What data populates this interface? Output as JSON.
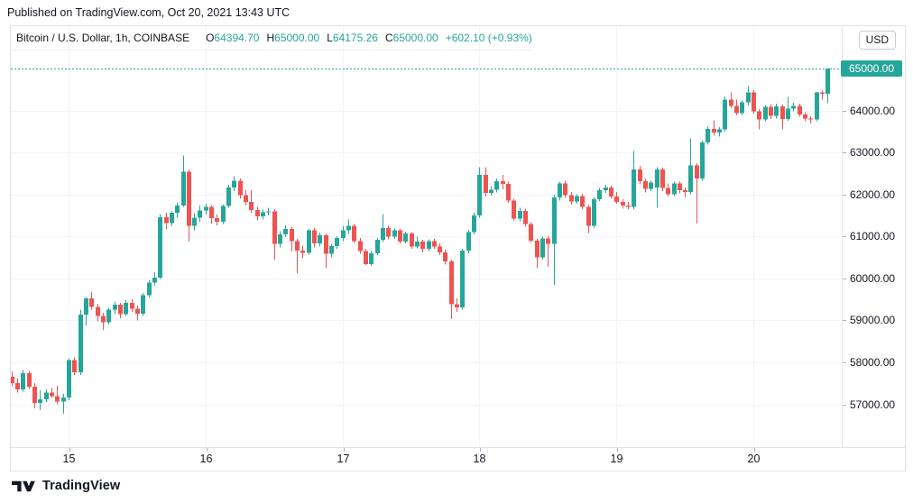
{
  "published_line": "Published on TradingView.com, Oct 20, 2021 13:43 UTC",
  "legend": {
    "symbol_title": "Bitcoin / U.S. Dollar, 1h, COINBASE",
    "open_label": "O",
    "open_value": "64394.70",
    "high_label": "H",
    "high_value": "65000.00",
    "low_label": "L",
    "low_value": "64175.26",
    "close_label": "C",
    "close_value": "65000.00",
    "change_value": "+602.10 (+0.93%)"
  },
  "price_axis": {
    "currency_button_label": "USD",
    "tick_labels": [
      "64000.00",
      "63000.00",
      "62000.00",
      "61000.00",
      "60000.00",
      "59000.00",
      "58000.00",
      "57000.00"
    ],
    "last_price_label": "65000.00"
  },
  "time_axis": {
    "tick_labels": [
      "15",
      "16",
      "17",
      "18",
      "19",
      "20"
    ]
  },
  "footer_logo": {
    "text": "TradingView"
  },
  "colors": {
    "up": "#26a69a",
    "down": "#ef5350",
    "last_price_line": "#26a69a",
    "grid": "#f0f3fa",
    "frame_border": "#e0e3eb",
    "text": "#131722",
    "value_text": "#26a69a"
  },
  "chart_data": {
    "type": "candlestick",
    "title": "Bitcoin / U.S. Dollar, 1h, COINBASE",
    "symbol": "Bitcoin / U.S. Dollar",
    "exchange": "COINBASE",
    "interval": "1h",
    "x_axis": {
      "day_tick_labels": [
        "15",
        "16",
        "17",
        "18",
        "19",
        "20"
      ],
      "hours_per_candle": 1,
      "candles_before_first_tick": 10
    },
    "y_axis": {
      "label": "USD",
      "range": [
        56600,
        65400
      ],
      "tick_step": 1000,
      "grid": true
    },
    "last_candle": {
      "open": 64394.7,
      "high": 65000.0,
      "low": 64175.26,
      "close": 65000.0,
      "change": 602.1,
      "change_pct": 0.93
    },
    "candles_ohlc": [
      [
        57650,
        57780,
        57430,
        57500
      ],
      [
        57500,
        57620,
        57280,
        57350
      ],
      [
        57350,
        57820,
        57300,
        57740
      ],
      [
        57740,
        57790,
        57360,
        57420
      ],
      [
        57420,
        57500,
        56900,
        57030
      ],
      [
        57030,
        57330,
        56860,
        57120
      ],
      [
        57120,
        57350,
        57050,
        57280
      ],
      [
        57280,
        57400,
        57150,
        57190
      ],
      [
        57190,
        57440,
        57000,
        57060
      ],
      [
        57060,
        57250,
        56770,
        57160
      ],
      [
        57160,
        58100,
        57100,
        58050
      ],
      [
        58050,
        58120,
        57700,
        57760
      ],
      [
        57760,
        59250,
        57700,
        59140
      ],
      [
        59140,
        59560,
        58880,
        59520
      ],
      [
        59520,
        59680,
        59260,
        59320
      ],
      [
        59320,
        59400,
        58980,
        59100
      ],
      [
        59100,
        59180,
        58770,
        58950
      ],
      [
        58950,
        59300,
        58900,
        59250
      ],
      [
        59250,
        59450,
        59150,
        59370
      ],
      [
        59370,
        59420,
        59050,
        59150
      ],
      [
        59150,
        59480,
        59100,
        59420
      ],
      [
        59420,
        59500,
        59200,
        59280
      ],
      [
        59280,
        59350,
        59000,
        59160
      ],
      [
        59160,
        59650,
        59110,
        59600
      ],
      [
        59600,
        59950,
        59550,
        59900
      ],
      [
        59900,
        60150,
        59820,
        60020
      ],
      [
        60020,
        61530,
        59980,
        61460
      ],
      [
        61460,
        61560,
        61180,
        61320
      ],
      [
        61320,
        61600,
        61250,
        61560
      ],
      [
        61560,
        61810,
        61450,
        61740
      ],
      [
        61740,
        62930,
        61700,
        62540
      ],
      [
        62540,
        62600,
        60880,
        61250
      ],
      [
        61250,
        61550,
        61150,
        61450
      ],
      [
        61450,
        61740,
        61350,
        61620
      ],
      [
        61620,
        61780,
        61520,
        61700
      ],
      [
        61700,
        61750,
        61310,
        61440
      ],
      [
        61440,
        61520,
        61260,
        61350
      ],
      [
        61350,
        61760,
        61300,
        61720
      ],
      [
        61720,
        62230,
        61680,
        62170
      ],
      [
        62170,
        62430,
        62080,
        62330
      ],
      [
        62330,
        62380,
        61900,
        61980
      ],
      [
        61980,
        62100,
        61750,
        61820
      ],
      [
        61820,
        62100,
        61560,
        61630
      ],
      [
        61630,
        61700,
        61380,
        61480
      ],
      [
        61480,
        61640,
        61400,
        61570
      ],
      [
        61570,
        61680,
        61500,
        61600
      ],
      [
        61600,
        61650,
        60450,
        60820
      ],
      [
        60820,
        61120,
        60740,
        61050
      ],
      [
        61050,
        61260,
        60980,
        61180
      ],
      [
        61180,
        61220,
        60640,
        60890
      ],
      [
        60890,
        60940,
        60130,
        60660
      ],
      [
        60660,
        60780,
        60480,
        60610
      ],
      [
        60610,
        61180,
        60560,
        61140
      ],
      [
        61140,
        61200,
        60740,
        60830
      ],
      [
        60830,
        61090,
        60760,
        61030
      ],
      [
        61030,
        61060,
        60240,
        60590
      ],
      [
        60590,
        60820,
        60500,
        60770
      ],
      [
        60770,
        61010,
        60700,
        60960
      ],
      [
        60960,
        61250,
        60890,
        61150
      ],
      [
        61150,
        61400,
        61060,
        61250
      ],
      [
        61250,
        61300,
        60840,
        60890
      ],
      [
        60890,
        60960,
        60590,
        60650
      ],
      [
        60650,
        60700,
        60320,
        60340
      ],
      [
        60340,
        60650,
        60300,
        60600
      ],
      [
        60600,
        60960,
        60550,
        60920
      ],
      [
        60920,
        61530,
        60870,
        61200
      ],
      [
        61200,
        61260,
        60930,
        60990
      ],
      [
        60990,
        61190,
        60940,
        61140
      ],
      [
        61140,
        61180,
        60820,
        60880
      ],
      [
        60880,
        61110,
        60830,
        61070
      ],
      [
        61070,
        61100,
        60700,
        60760
      ],
      [
        60760,
        60990,
        60720,
        60880
      ],
      [
        60880,
        60920,
        60620,
        60700
      ],
      [
        60700,
        60930,
        60650,
        60890
      ],
      [
        60890,
        60940,
        60700,
        60760
      ],
      [
        60760,
        60830,
        60550,
        60620
      ],
      [
        60620,
        60680,
        60330,
        60400
      ],
      [
        60400,
        60450,
        59030,
        59380
      ],
      [
        59380,
        59520,
        59200,
        59310
      ],
      [
        59310,
        60700,
        59260,
        60660
      ],
      [
        60660,
        61160,
        60600,
        61100
      ],
      [
        61100,
        61560,
        61050,
        61500
      ],
      [
        61500,
        62650,
        61450,
        62470
      ],
      [
        62470,
        62650,
        61950,
        62040
      ],
      [
        62040,
        62200,
        61980,
        62110
      ],
      [
        62110,
        62380,
        62050,
        62320
      ],
      [
        62320,
        62470,
        62120,
        62250
      ],
      [
        62250,
        62300,
        61800,
        61850
      ],
      [
        61850,
        61900,
        61380,
        61420
      ],
      [
        61420,
        61680,
        61360,
        61610
      ],
      [
        61610,
        61660,
        61230,
        61290
      ],
      [
        61290,
        61340,
        60850,
        60900
      ],
      [
        60900,
        60950,
        60240,
        60500
      ],
      [
        60500,
        61000,
        60450,
        60950
      ],
      [
        60950,
        61010,
        60280,
        60820
      ],
      [
        60820,
        61990,
        59850,
        61930
      ],
      [
        61930,
        62300,
        61850,
        62260
      ],
      [
        62260,
        62330,
        61920,
        61980
      ],
      [
        61980,
        62060,
        61760,
        61830
      ],
      [
        61830,
        62000,
        61780,
        61960
      ],
      [
        61960,
        62010,
        61650,
        61700
      ],
      [
        61700,
        61750,
        61080,
        61250
      ],
      [
        61250,
        61930,
        61200,
        61890
      ],
      [
        61890,
        62150,
        61840,
        62100
      ],
      [
        62100,
        62230,
        62040,
        62160
      ],
      [
        62160,
        62210,
        61900,
        61950
      ],
      [
        61950,
        62060,
        61780,
        61820
      ],
      [
        61820,
        61890,
        61660,
        61740
      ],
      [
        61740,
        61820,
        61650,
        61700
      ],
      [
        61700,
        63030,
        61650,
        62600
      ],
      [
        62600,
        62680,
        62250,
        62320
      ],
      [
        62320,
        62380,
        62050,
        62130
      ],
      [
        62130,
        62330,
        62080,
        62280
      ],
      [
        62170,
        62650,
        61680,
        62600
      ],
      [
        62600,
        62640,
        62080,
        62150
      ],
      [
        62150,
        62260,
        61950,
        62000
      ],
      [
        62000,
        62300,
        61960,
        62260
      ],
      [
        62260,
        62310,
        62030,
        62100
      ],
      [
        62100,
        62160,
        61930,
        62060
      ],
      [
        62060,
        63330,
        62000,
        62690
      ],
      [
        62690,
        62750,
        61310,
        62380
      ],
      [
        62380,
        63280,
        62330,
        63240
      ],
      [
        63240,
        63610,
        63180,
        63560
      ],
      [
        63560,
        63760,
        63400,
        63480
      ],
      [
        63480,
        63600,
        63380,
        63550
      ],
      [
        63550,
        64330,
        63500,
        64260
      ],
      [
        64260,
        64430,
        64050,
        64110
      ],
      [
        64110,
        64260,
        63890,
        63940
      ],
      [
        63940,
        64240,
        63890,
        64190
      ],
      [
        64190,
        64580,
        64120,
        64430
      ],
      [
        64430,
        64480,
        63930,
        63980
      ],
      [
        63980,
        64030,
        63550,
        63790
      ],
      [
        63790,
        64130,
        63740,
        64090
      ],
      [
        64090,
        64150,
        63800,
        63870
      ],
      [
        63870,
        64160,
        63810,
        64100
      ],
      [
        64100,
        64140,
        63550,
        63800
      ],
      [
        63800,
        64320,
        63750,
        64040
      ],
      [
        64040,
        64180,
        63980,
        64110
      ],
      [
        64110,
        64160,
        63850,
        63900
      ],
      [
        63900,
        63960,
        63740,
        63810
      ],
      [
        63810,
        63860,
        63690,
        63790
      ],
      [
        63790,
        64440,
        63740,
        64430
      ],
      [
        64430,
        64470,
        64260,
        64395
      ],
      [
        64394.7,
        65000,
        64175.26,
        65000
      ]
    ]
  }
}
